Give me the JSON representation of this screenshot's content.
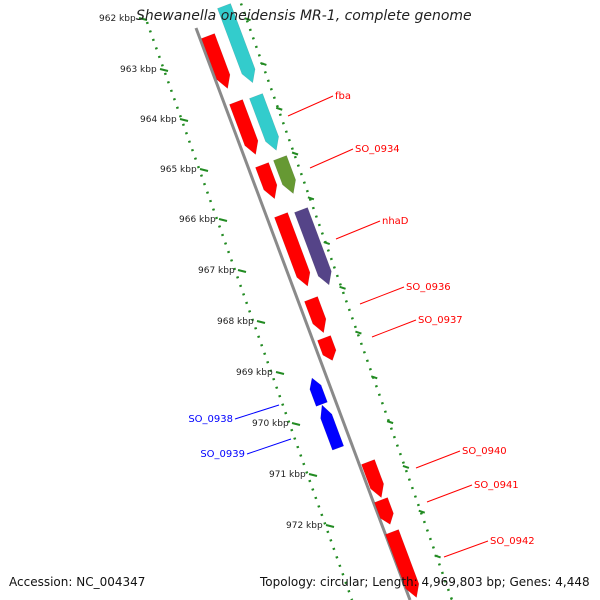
{
  "header": {
    "organism": "Shewanella oneidensis MR-1, complete genome"
  },
  "footer": {
    "accession": "Accession: NC_004347",
    "summary": "Topology: circular; Length: 4,969,803 bp; Genes: 4,448"
  },
  "colors": {
    "forward_strand": "#ff0000",
    "reverse_strand": "#0000ff",
    "cyan_feature": "#33cccc",
    "olive_feature": "#669933",
    "purple_feature": "#554488",
    "backbone": "#8a8a8a",
    "ruler": "#228b22"
  },
  "ruler_ticks": [
    "962 kbp",
    "963 kbp",
    "964 kbp",
    "965 kbp",
    "966 kbp",
    "967 kbp",
    "968 kbp",
    "969 kbp",
    "970 kbp",
    "971 kbp",
    "972 kbp"
  ],
  "gene_labels": [
    {
      "text": "fba",
      "strand": "forward"
    },
    {
      "text": "SO_0934",
      "strand": "forward"
    },
    {
      "text": "nhaD",
      "strand": "forward"
    },
    {
      "text": "SO_0936",
      "strand": "forward"
    },
    {
      "text": "SO_0937",
      "strand": "forward"
    },
    {
      "text": "SO_0938",
      "strand": "reverse"
    },
    {
      "text": "SO_0939",
      "strand": "reverse"
    },
    {
      "text": "SO_0940",
      "strand": "forward"
    },
    {
      "text": "SO_0941",
      "strand": "forward"
    },
    {
      "text": "SO_0942",
      "strand": "forward"
    }
  ]
}
